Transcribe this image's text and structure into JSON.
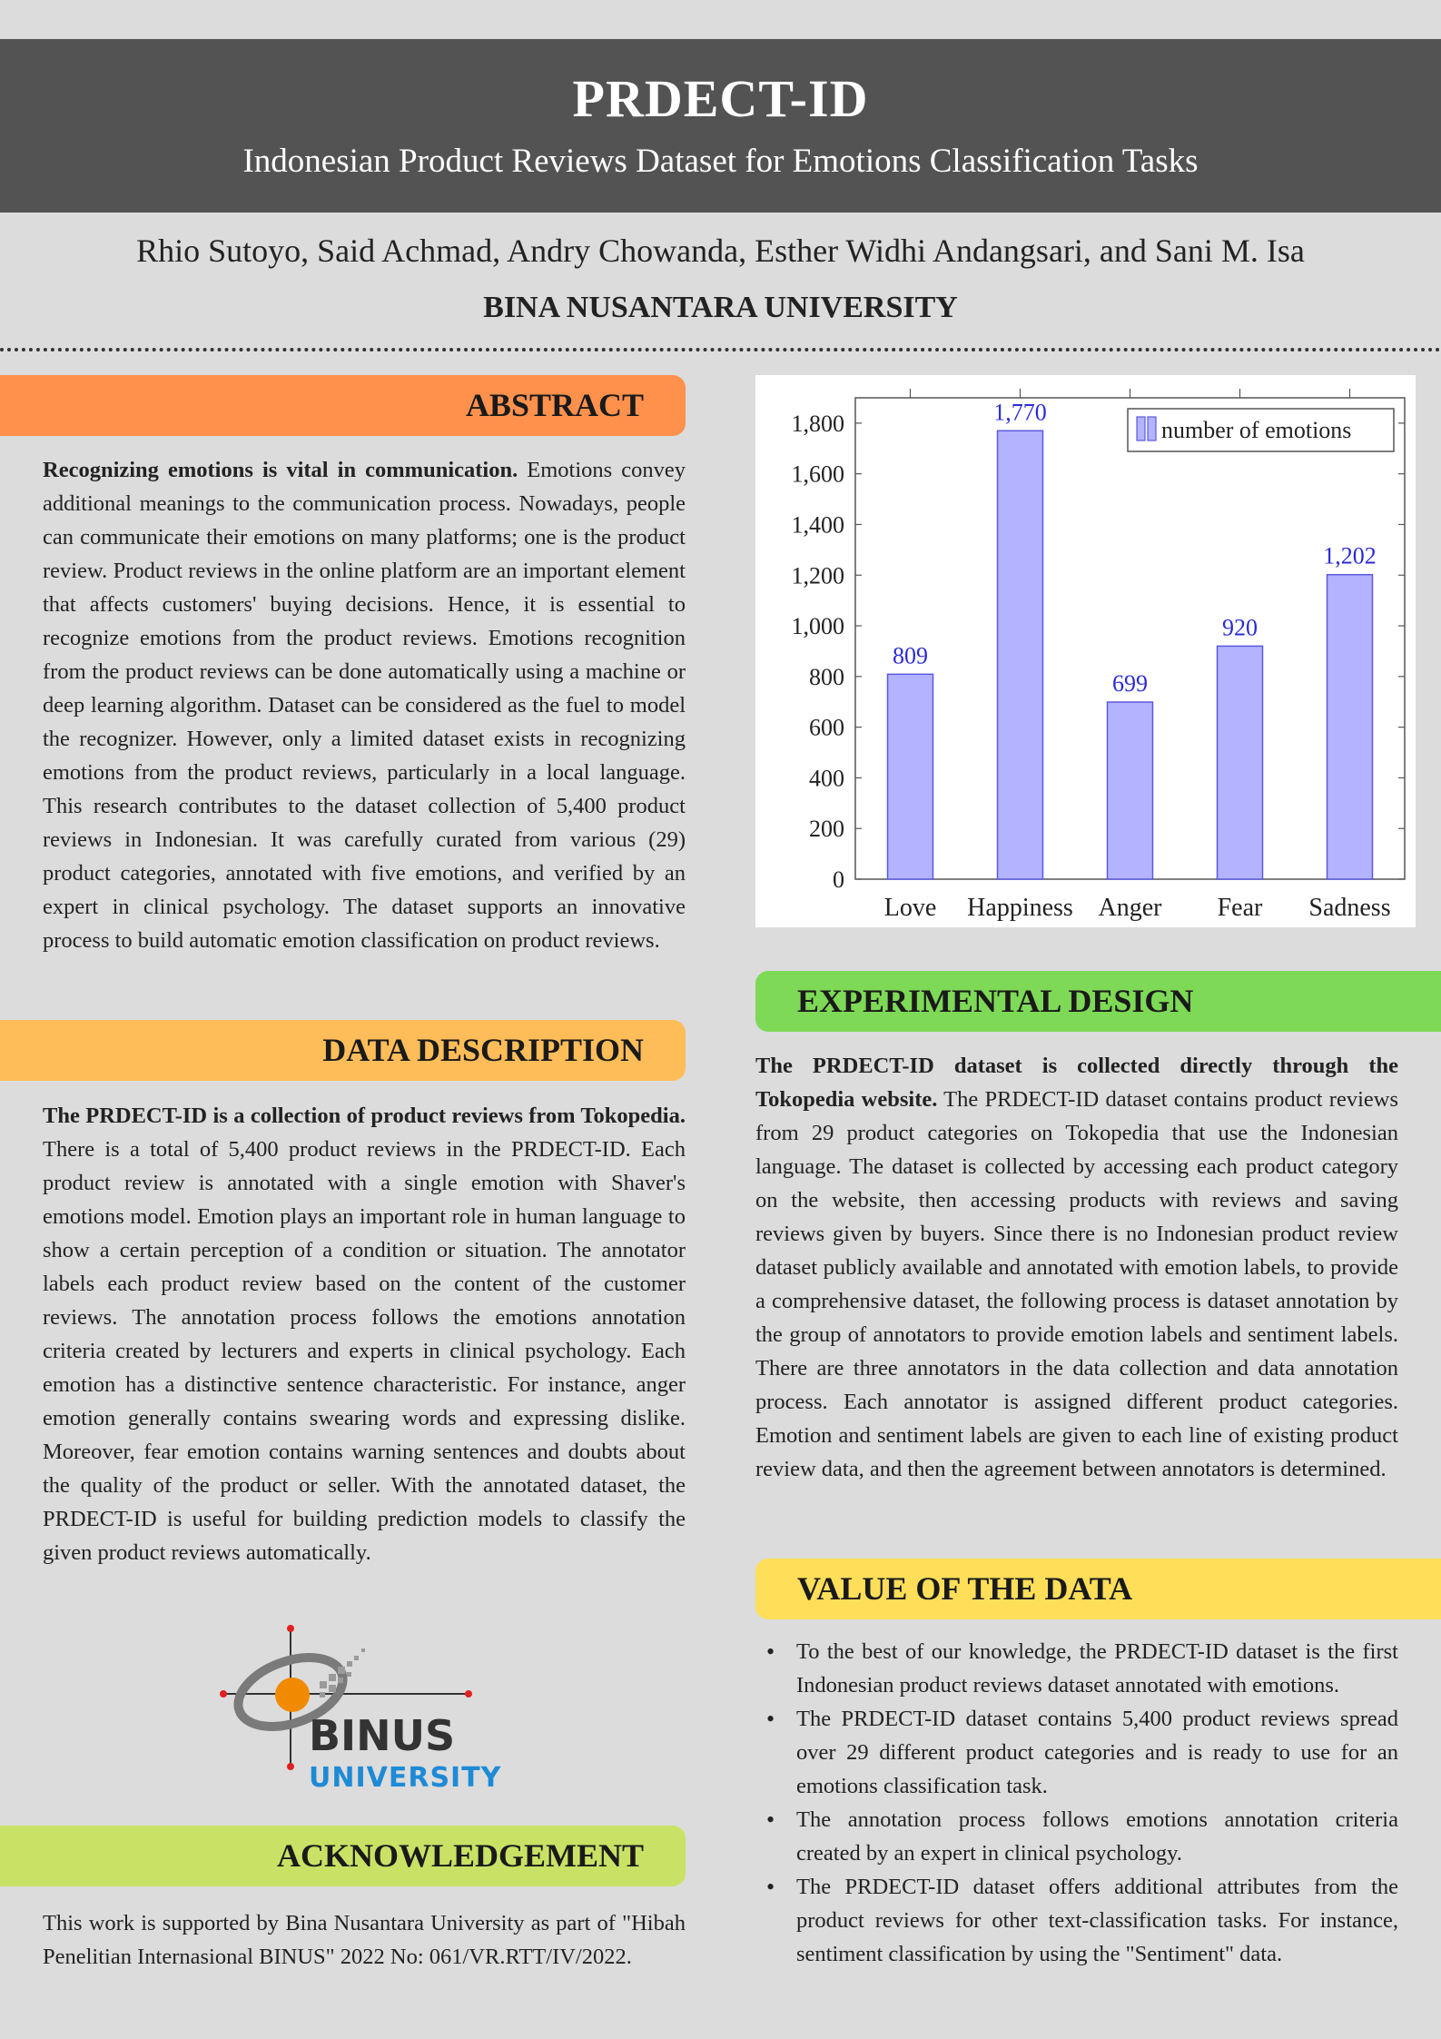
{
  "header": {
    "title": "PRDECT-ID",
    "subtitle": "Indonesian Product Reviews Dataset for Emotions Classification Tasks",
    "authors": "Rhio Sutoyo, Said Achmad, Andry Chowanda, Esther Widhi Andangsari, and Sani M. Isa",
    "affiliation": "BINA NUSANTARA UNIVERSITY"
  },
  "colors": {
    "banner": "#535353",
    "abstract": "#ff914d",
    "data_description": "#ffbd59",
    "experimental_design": "#7ed957",
    "value_of_data": "#ffde59",
    "acknowledgement": "#c9e265",
    "bar_fill": "#b3b3ff",
    "bar_stroke": "#5a5ae0"
  },
  "abstract": {
    "heading": "ABSTRACT",
    "lead": "Recognizing emotions is vital in communication.",
    "body": " Emotions convey additional meanings to the communication process. Nowadays, people can communicate their emotions on many platforms; one is the product review. Product reviews in the online platform are an important element that affects customers' buying decisions. Hence, it is essential to recognize emotions from the product reviews. Emotions recognition from the product reviews can be done automatically using a machine or deep learning algorithm. Dataset can be considered as the fuel to model the recognizer. However, only a limited dataset exists in recognizing emotions from the product reviews, particularly in a local language. This research contributes to the dataset collection of 5,400 product reviews in Indonesian. It was carefully curated from various (29) product categories, annotated with five emotions, and verified by an expert in clinical psychology. The dataset supports an innovative process to build automatic emotion classification on product reviews."
  },
  "data_description": {
    "heading": "DATA DESCRIPTION",
    "lead": "The PRDECT-ID is a collection of product reviews from Tokopedia.",
    "body": " There is a total of 5,400 product reviews in the PRDECT-ID. Each product review is annotated with a single emotion with Shaver's emotions model. Emotion plays an important role in human language to show a certain perception of a condition or situation. The annotator labels each product review based on the content of the customer reviews. The annotation process follows the emotions annotation criteria created by lecturers and experts in clinical psychology. Each emotion has a distinctive sentence characteristic. For instance, anger emotion generally contains swearing words and expressing dislike. Moreover, fear emotion contains warning sentences and doubts about the quality of the product or seller. With the annotated dataset, the PRDECT-ID is useful for building prediction models to classify the given product reviews automatically."
  },
  "logo": {
    "line1": "BINUS",
    "line2": "UNIVERSITY"
  },
  "acknowledgement": {
    "heading": "ACKNOWLEDGEMENT",
    "body": "This work is supported by Bina Nusantara University as part of \"Hibah Penelitian Internasional BINUS\" 2022 No: 061/VR.RTT/IV/2022."
  },
  "experimental_design": {
    "heading": "EXPERIMENTAL DESIGN",
    "lead": "The PRDECT-ID dataset is collected directly through the Tokopedia website.",
    "body": " The PRDECT-ID dataset contains product reviews from 29 product categories on Tokopedia that use the Indonesian language. The dataset is collected by accessing each product category on the website, then accessing products with reviews and saving reviews given by buyers. Since there is no Indonesian product review dataset publicly available and annotated with emotion labels, to provide a comprehensive dataset, the following process is dataset annotation by the group of annotators to provide emotion labels and sentiment labels. There are three annotators in the data collection and data annotation process. Each annotator is assigned different product categories. Emotion and sentiment labels are given to each line of existing product review data, and then the agreement between annotators is determined."
  },
  "value_of_data": {
    "heading": "VALUE OF THE DATA",
    "items": [
      "To the best of our knowledge, the PRDECT-ID dataset is the first Indonesian product reviews dataset annotated with emotions.",
      "The PRDECT-ID dataset contains 5,400 product reviews spread over 29 different product categories and is ready to use for an emotions classification task.",
      "The annotation process follows emotions annotation criteria created by an expert in clinical psychology.",
      "The PRDECT-ID dataset offers additional attributes from the product reviews for other text-classification tasks. For instance, sentiment classification by using the \"Sentiment\" data."
    ]
  },
  "chart_data": {
    "type": "bar",
    "categories": [
      "Love",
      "Happiness",
      "Anger",
      "Fear",
      "Sadness"
    ],
    "series": [
      {
        "name": "number of emotions",
        "values": [
          809,
          1770,
          699,
          920,
          1202
        ]
      }
    ],
    "data_labels": [
      "809",
      "1,770",
      "699",
      "920",
      "1,202"
    ],
    "yticks": [
      "0",
      "200",
      "400",
      "600",
      "800",
      "1,000",
      "1,200",
      "1,400",
      "1,600",
      "1,800"
    ],
    "ylim": [
      0,
      1900
    ],
    "legend_position": "top-right",
    "grid": false
  }
}
